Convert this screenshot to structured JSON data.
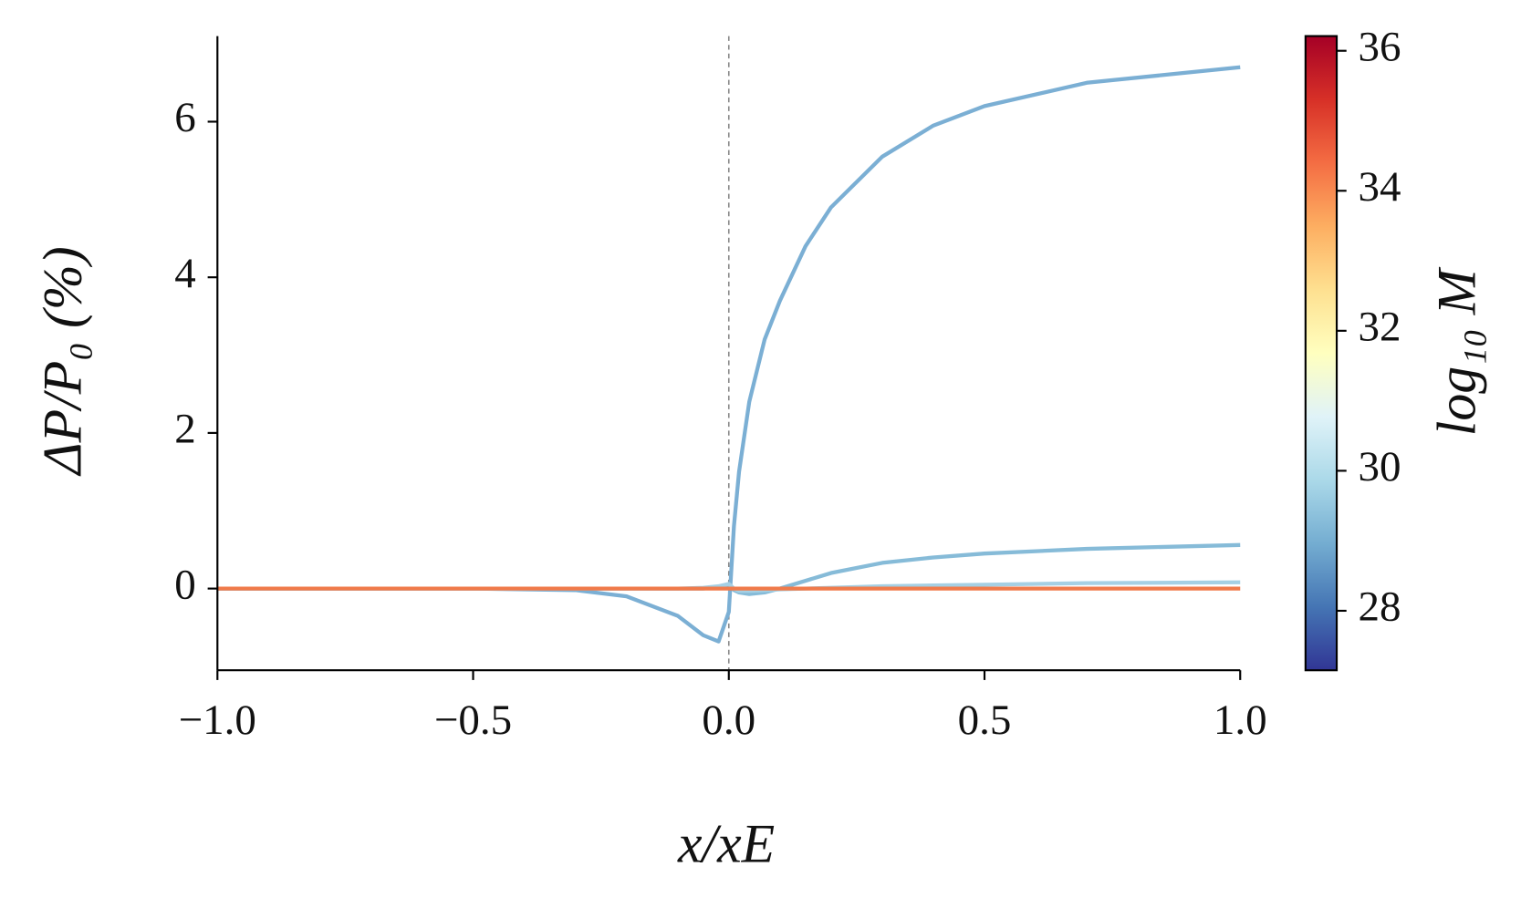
{
  "chart_data": {
    "type": "line",
    "xlabel": "x/xE",
    "ylabel": "ΔP/P₀ (%)",
    "x": [
      -1,
      -0.5,
      -0.3,
      -0.2,
      -0.1,
      -0.05,
      -0.02,
      0,
      0.01,
      0.02,
      0.04,
      0.07,
      0.1,
      0.15,
      0.2,
      0.3,
      0.4,
      0.5,
      0.7,
      1.0
    ],
    "series": [
      {
        "color": "#7bafd4",
        "values": [
          0,
          0,
          -0.02,
          -0.1,
          -0.35,
          -0.6,
          -0.68,
          -0.3,
          0.8,
          1.5,
          2.4,
          3.2,
          3.7,
          4.4,
          4.9,
          5.55,
          5.95,
          6.2,
          6.5,
          6.7
        ]
      },
      {
        "color": "#86bbd8",
        "values": [
          0,
          0,
          0,
          0,
          0,
          0,
          0.02,
          0.05,
          -0.02,
          -0.05,
          -0.07,
          -0.05,
          0.0,
          0.1,
          0.2,
          0.33,
          0.4,
          0.45,
          0.51,
          0.56
        ]
      },
      {
        "color": "#a5d0e4",
        "values": [
          0,
          0,
          0,
          0,
          0,
          0.01,
          0.03,
          0.06,
          0,
          -0.03,
          -0.03,
          -0.02,
          -0.01,
          0,
          0.01,
          0.03,
          0.04,
          0.05,
          0.07,
          0.08
        ]
      },
      {
        "color": "#f07a4a",
        "values": [
          0,
          0,
          0,
          0,
          0,
          0,
          0,
          0,
          0,
          0,
          0,
          0,
          0,
          0,
          0,
          0,
          0,
          0,
          0,
          0
        ]
      }
    ],
    "xlim": [
      -1,
      1
    ],
    "xticks": [
      {
        "value": -1,
        "label": "−1.0"
      },
      {
        "value": -0.5,
        "label": "−0.5"
      },
      {
        "value": 0,
        "label": "0.0"
      },
      {
        "value": 0.5,
        "label": "0.5"
      },
      {
        "value": 1,
        "label": "1.0"
      }
    ],
    "ylim": [
      -1.05,
      7.1
    ],
    "yticks": [
      0,
      2,
      4,
      6
    ],
    "vline": 0,
    "colorbar": {
      "label": "log₁₀ M",
      "lim": [
        27.15,
        36.21
      ],
      "ticks": [
        28,
        30,
        32,
        34,
        36
      ]
    }
  }
}
